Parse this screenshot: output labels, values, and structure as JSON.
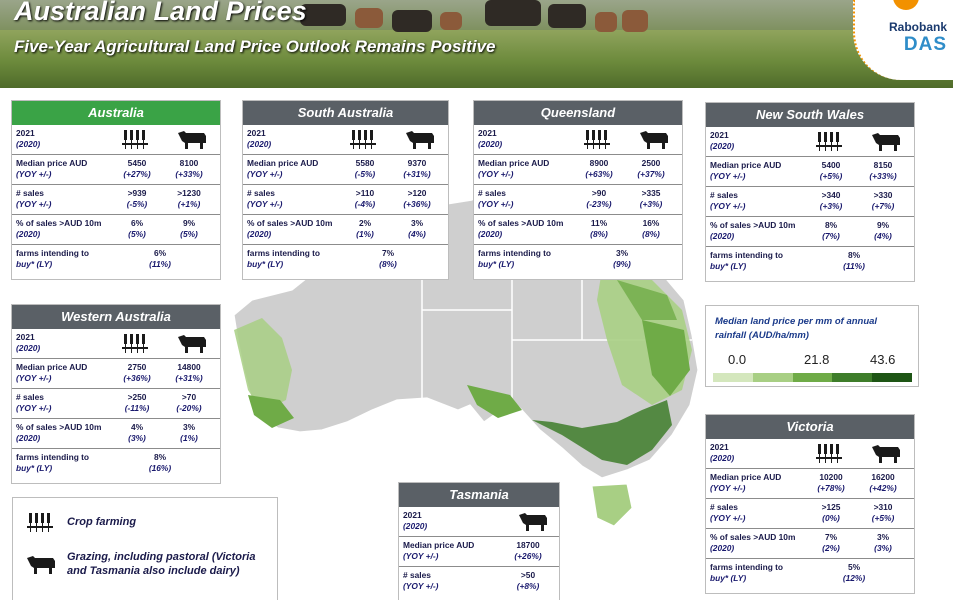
{
  "header": {
    "title": "Australian Land Prices",
    "subtitle": "Five-Year Agricultural Land Price Outlook Remains Positive"
  },
  "logo": {
    "brand": "Rabobank",
    "sub": "DAS"
  },
  "colors": {
    "national_header": "#3aa346",
    "state_header": "#5a6066",
    "scale": [
      "#d4e7bd",
      "#a8cf84",
      "#6fab47",
      "#3e7d2a",
      "#1e5515"
    ]
  },
  "icons": {
    "crop": "wheat-icon",
    "grazing": "cow-icon"
  },
  "labels": {
    "year": "2021",
    "year_prev": "(2020)",
    "median": "Median price AUD",
    "median_sub": "(YOY +/-)",
    "sales": "# sales",
    "sales_sub": "(YOY +/-)",
    "pct": "% of sales >AUD 10m",
    "pct_sub": "(2020)",
    "farms": "farms intending to",
    "farms_sub": "buy* (LY)"
  },
  "regions": {
    "australia": {
      "name": "Australia",
      "median": [
        "5450",
        "8100"
      ],
      "median_yoy": [
        "(+27%)",
        "(+33%)"
      ],
      "sales": [
        ">939",
        ">1230"
      ],
      "sales_yoy": [
        "(-5%)",
        "(+1%)"
      ],
      "pct": [
        "6%",
        "9%"
      ],
      "pct_prev": [
        "(5%)",
        "(5%)"
      ],
      "farms": "6%",
      "farms_prev": "(11%)"
    },
    "south_australia": {
      "name": "South Australia",
      "median": [
        "5580",
        "9370"
      ],
      "median_yoy": [
        "(-5%)",
        "(+31%)"
      ],
      "sales": [
        ">110",
        ">120"
      ],
      "sales_yoy": [
        "(-4%)",
        "(+36%)"
      ],
      "pct": [
        "2%",
        "3%"
      ],
      "pct_prev": [
        "(1%)",
        "(4%)"
      ],
      "farms": "7%",
      "farms_prev": "(8%)"
    },
    "queensland": {
      "name": "Queensland",
      "median": [
        "8900",
        "2500"
      ],
      "median_yoy": [
        "(+63%)",
        "(+37%)"
      ],
      "sales": [
        ">90",
        ">335"
      ],
      "sales_yoy": [
        "(-23%)",
        "(+3%)"
      ],
      "pct": [
        "11%",
        "16%"
      ],
      "pct_prev": [
        "(8%)",
        "(8%)"
      ],
      "farms": "3%",
      "farms_prev": "(9%)"
    },
    "new_south_wales": {
      "name": "New South Wales",
      "median": [
        "5400",
        "8150"
      ],
      "median_yoy": [
        "(+5%)",
        "(+33%)"
      ],
      "sales": [
        ">340",
        ">330"
      ],
      "sales_yoy": [
        "(+3%)",
        "(+7%)"
      ],
      "pct": [
        "8%",
        "9%"
      ],
      "pct_prev": [
        "(7%)",
        "(4%)"
      ],
      "farms": "8%",
      "farms_prev": "(11%)"
    },
    "western_australia": {
      "name": "Western Australia",
      "median": [
        "2750",
        "14800"
      ],
      "median_yoy": [
        "(+36%)",
        "(+31%)"
      ],
      "sales": [
        ">250",
        ">70"
      ],
      "sales_yoy": [
        "(-11%)",
        "(-20%)"
      ],
      "pct": [
        "4%",
        "3%"
      ],
      "pct_prev": [
        "(3%)",
        "(1%)"
      ],
      "farms": "8%",
      "farms_prev": "(16%)"
    },
    "victoria": {
      "name": "Victoria",
      "median": [
        "10200",
        "16200"
      ],
      "median_yoy": [
        "(+78%)",
        "(+42%)"
      ],
      "sales": [
        ">125",
        ">310"
      ],
      "sales_yoy": [
        "(0%)",
        "(+5%)"
      ],
      "pct": [
        "7%",
        "3%"
      ],
      "pct_prev": [
        "(2%)",
        "(3%)"
      ],
      "farms": "5%",
      "farms_prev": "(12%)"
    },
    "tasmania": {
      "name": "Tasmania",
      "median": "18700",
      "median_yoy": "(+26%)",
      "sales": ">50",
      "sales_yoy": "(+8%)"
    }
  },
  "legend": {
    "crop": "Crop farming",
    "grazing_line1": "Grazing, including pastoral (Victoria",
    "grazing_line2": "and Tasmania also include dairy)"
  },
  "scale": {
    "title_line1": "Median land price per mm of annual",
    "title_line2": "rainfall (AUD/ha/mm)",
    "ticks": [
      "0.0",
      "21.8",
      "43.6"
    ]
  }
}
